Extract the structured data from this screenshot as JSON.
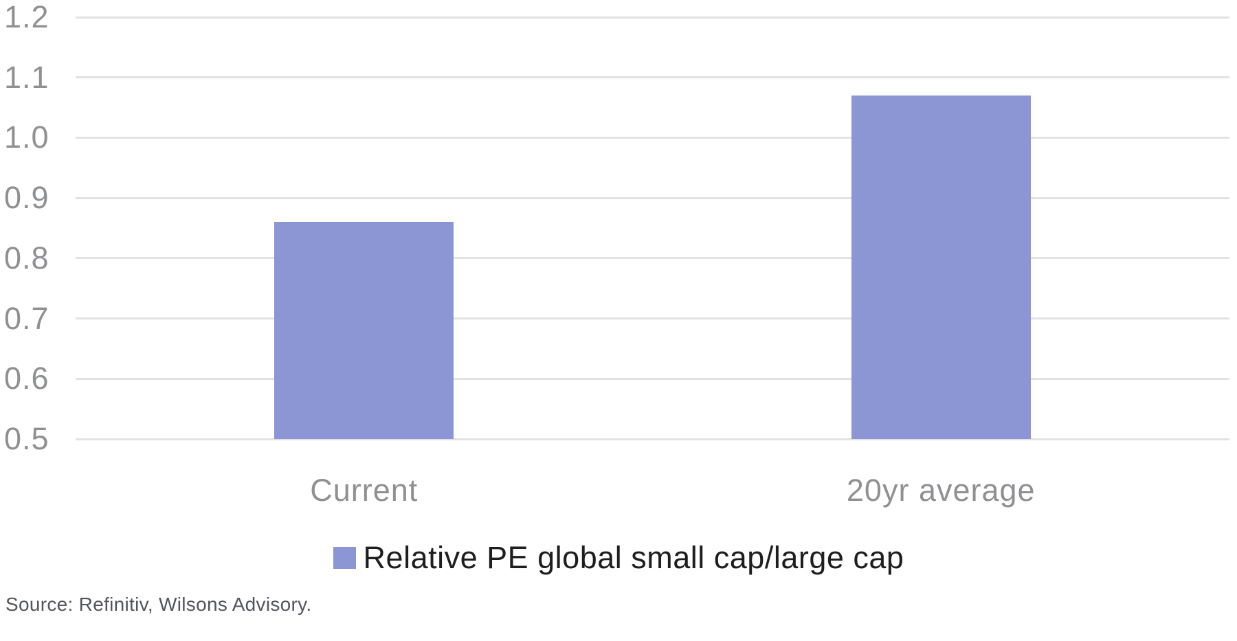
{
  "chart_data": {
    "type": "bar",
    "categories": [
      "Current",
      "20yr average"
    ],
    "series": [
      {
        "name": "Relative PE global small cap/large cap",
        "values": [
          0.86,
          1.07
        ]
      }
    ],
    "title": "",
    "xlabel": "",
    "ylabel": "",
    "ylim": [
      0.5,
      1.2
    ],
    "ytick_step": 0.1,
    "yticks": [
      "1.2",
      "1.1",
      "1.0",
      "0.9",
      "0.8",
      "0.7",
      "0.6",
      "0.5"
    ],
    "grid": true,
    "legend_position": "bottom",
    "bar_color": "#8c96d5"
  },
  "legend": {
    "label": "Relative PE global small cap/large cap",
    "swatch_color": "#8c96d5"
  },
  "footer": {
    "source": "Source: Refinitiv, Wilsons Advisory."
  },
  "colors": {
    "bar": "#8c96d5",
    "gridline": "#e2e2e2",
    "axis_text": "#8f9092",
    "legend_text": "#1e1e1e",
    "source_text": "#53555a",
    "background": "#ffffff"
  }
}
